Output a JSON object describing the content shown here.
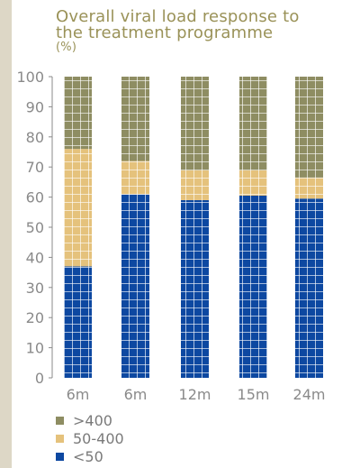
{
  "title_lines": [
    "Overall viral load response to",
    "the treatment programme",
    "(%)"
  ],
  "colors": {
    "s400plus": "#8e8d62",
    "s50to400": "#e5c27c",
    "below50": "#0d48a1",
    "axis": "#8a8a8a"
  },
  "chart_data": {
    "type": "bar",
    "stacked": true,
    "categories": [
      "6m",
      "6m",
      "12m",
      "15m",
      "24m"
    ],
    "series": [
      {
        "name": "<50",
        "values": [
          37,
          61,
          59,
          60.5,
          59.5
        ]
      },
      {
        "name": "50-400",
        "values": [
          39,
          11,
          10,
          8.5,
          7
        ]
      },
      {
        "name": ">400",
        "values": [
          24,
          28,
          31,
          31,
          33.5
        ]
      }
    ],
    "ylim": [
      0,
      100
    ],
    "yticks": [
      "0",
      "10",
      "20",
      "30",
      "40",
      "50",
      "60",
      "70",
      "80",
      "90",
      "100"
    ],
    "legend": [
      ">400",
      "50-400",
      "<50"
    ],
    "legend_placement": "bottom-left"
  }
}
